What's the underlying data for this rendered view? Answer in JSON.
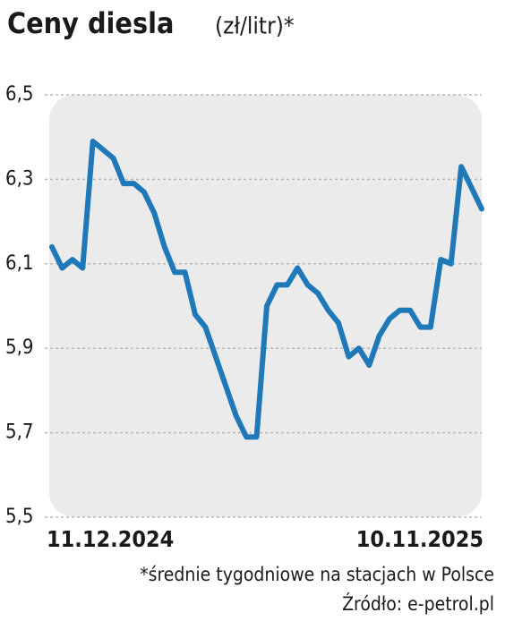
{
  "chart_data": {
    "type": "line",
    "title": "Ceny diesla",
    "subtitle": "(zł/litr)*",
    "categories": [
      "11.12.2024",
      null,
      null,
      null,
      null,
      null,
      null,
      null,
      null,
      null,
      null,
      null,
      null,
      null,
      null,
      null,
      null,
      null,
      null,
      null,
      null,
      null,
      null,
      null,
      null,
      null,
      null,
      null,
      null,
      null,
      null,
      null,
      null,
      null,
      null,
      null,
      null,
      null,
      null,
      null,
      null,
      null,
      "10.11.2025"
    ],
    "series": [
      {
        "name": "Ceny diesla",
        "color": "#1f78b8",
        "values": [
          6.14,
          6.09,
          6.11,
          6.09,
          6.39,
          6.37,
          6.35,
          6.29,
          6.29,
          6.27,
          6.22,
          6.14,
          6.08,
          6.08,
          5.98,
          5.95,
          5.88,
          5.81,
          5.74,
          5.69,
          5.69,
          6.0,
          6.05,
          6.05,
          6.09,
          6.05,
          6.03,
          5.99,
          5.96,
          5.88,
          5.9,
          5.86,
          5.93,
          5.97,
          5.99,
          5.99,
          5.95,
          5.95,
          6.11,
          6.1,
          6.33,
          6.28,
          6.23
        ]
      }
    ],
    "ylim": [
      5.5,
      6.5
    ],
    "yticks": [
      {
        "value": 5.5,
        "label": "5,5"
      },
      {
        "value": 5.7,
        "label": "5,7"
      },
      {
        "value": 5.9,
        "label": "5,9"
      },
      {
        "value": 6.1,
        "label": "6,1"
      },
      {
        "value": 6.3,
        "label": "6,3"
      },
      {
        "value": 6.5,
        "label": "6,5"
      }
    ],
    "grid": true,
    "footnote": "*średnie tygodniowe na stacjach w Polsce",
    "source": "Źródło: e-petrol.pl"
  }
}
